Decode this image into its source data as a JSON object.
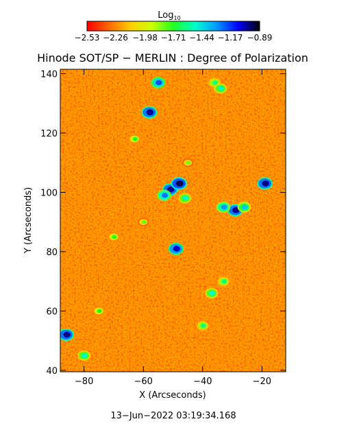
{
  "chart_data": {
    "type": "heatmap",
    "title": "Hinode SOT/SP − MERLIN : Degree of Polarization",
    "xlabel": "X (Arcseconds)",
    "ylabel": "Y (Arcseconds)",
    "xlim": [
      -88,
      -12
    ],
    "ylim": [
      39.5,
      141.5
    ],
    "xticks": [
      -80,
      -60,
      -40,
      -20
    ],
    "xtick_labels": [
      "−80",
      "−60",
      "−40",
      "−20"
    ],
    "yticks": [
      40,
      60,
      80,
      100,
      120,
      140
    ],
    "ytick_labels": [
      "40",
      "60",
      "80",
      "100",
      "120",
      "140"
    ],
    "timestamp": "13−Jun−2022 03:19:34.168",
    "colorbar": {
      "label": "Log",
      "label_subscript": "10",
      "min": -2.53,
      "max": -0.89,
      "tick_values": [
        -2.53,
        -2.26,
        -1.98,
        -1.71,
        -1.44,
        -1.17,
        -0.89
      ],
      "tick_labels": [
        "−2.53",
        "−2.26",
        "−1.98",
        "−1.71",
        "−1.44",
        "−1.17",
        "−0.89"
      ],
      "colormap": [
        "#ff0000",
        "#ff6600",
        "#ffcc00",
        "#ccff00",
        "#22ff22",
        "#00ffcc",
        "#0099ff",
        "#0000ff",
        "#000000"
      ]
    },
    "background_value": -2.25,
    "features": [
      {
        "x": -51,
        "y": 101,
        "value": -1.0
      },
      {
        "x": -48,
        "y": 103,
        "value": -0.95
      },
      {
        "x": -53,
        "y": 99,
        "value": -1.25
      },
      {
        "x": -46,
        "y": 98,
        "value": -1.5
      },
      {
        "x": -29,
        "y": 94,
        "value": -1.0
      },
      {
        "x": -33,
        "y": 95,
        "value": -1.3
      },
      {
        "x": -26,
        "y": 95,
        "value": -1.4
      },
      {
        "x": -19,
        "y": 103,
        "value": -1.0
      },
      {
        "x": -49,
        "y": 81,
        "value": -1.05
      },
      {
        "x": -58,
        "y": 127,
        "value": -1.0
      },
      {
        "x": -55,
        "y": 137,
        "value": -1.2
      },
      {
        "x": -36,
        "y": 137,
        "value": -1.6
      },
      {
        "x": -34,
        "y": 135,
        "value": -1.5
      },
      {
        "x": -37,
        "y": 66,
        "value": -1.5
      },
      {
        "x": -33,
        "y": 70,
        "value": -1.6
      },
      {
        "x": -40,
        "y": 55,
        "value": -1.6
      },
      {
        "x": -86,
        "y": 52,
        "value": -1.0
      },
      {
        "x": -80,
        "y": 45,
        "value": -1.5
      },
      {
        "x": -63,
        "y": 118,
        "value": -1.7
      },
      {
        "x": -70,
        "y": 85,
        "value": -1.7
      },
      {
        "x": -75,
        "y": 60,
        "value": -1.7
      },
      {
        "x": -60,
        "y": 90,
        "value": -1.8
      },
      {
        "x": -45,
        "y": 110,
        "value": -1.8
      }
    ]
  }
}
